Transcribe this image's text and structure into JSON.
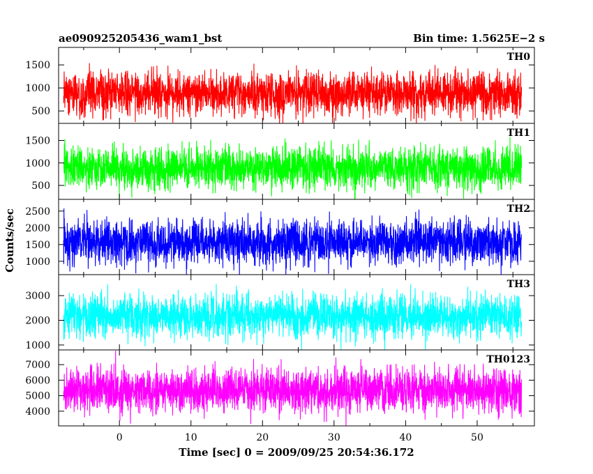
{
  "chart_data": {
    "type": "line",
    "title": "ae090925205436_wam1_bst",
    "bin_time_label": "Bin time: 1.5625E−2 s",
    "xlabel": "Time [sec] 0 = 2009/09/25 20:54:36.172",
    "ylabel": "Counts/sec",
    "xlim": [
      -8.5,
      58
    ],
    "data_x_range": [
      -7.8,
      56.2
    ],
    "x_ticks": [
      0,
      10,
      20,
      30,
      40,
      50
    ],
    "panels": [
      {
        "name": "TH0",
        "color": "#ff0000",
        "ylim": [
          230,
          1880
        ],
        "y_ticks": [
          500,
          1000,
          1500
        ],
        "mean": 880,
        "sigma": 230,
        "min": 170,
        "max": 1870
      },
      {
        "name": "TH1",
        "color": "#00ff00",
        "ylim": [
          190,
          1880
        ],
        "y_ticks": [
          500,
          1000,
          1500
        ],
        "mean": 880,
        "sigma": 235,
        "min": 130,
        "max": 1870
      },
      {
        "name": "TH2",
        "color": "#0000ff",
        "ylim": [
          600,
          2850
        ],
        "y_ticks": [
          1000,
          1500,
          2000,
          2500
        ],
        "mean": 1560,
        "sigma": 330,
        "min": 550,
        "max": 2850
      },
      {
        "name": "TH3",
        "color": "#00ffff",
        "ylim": [
          800,
          3850
        ],
        "y_ticks": [
          1000,
          2000,
          3000
        ],
        "mean": 2150,
        "sigma": 430,
        "min": 720,
        "max": 3850
      },
      {
        "name": "TH0123",
        "color": "#ff00ff",
        "ylim": [
          3050,
          7950
        ],
        "y_ticks": [
          4000,
          5000,
          6000,
          7000
        ],
        "mean": 5350,
        "sigma": 720,
        "min": 3000,
        "max": 7950
      }
    ]
  }
}
